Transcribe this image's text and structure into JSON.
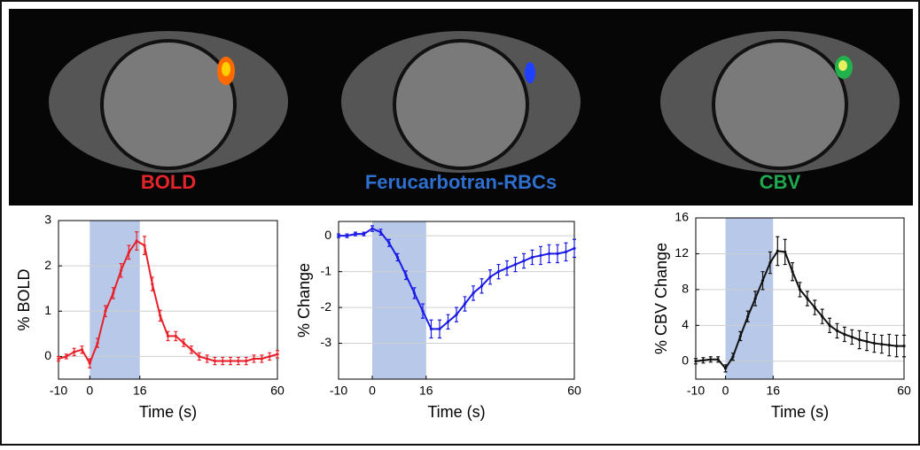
{
  "chart_data": [
    {
      "type": "line",
      "title": "BOLD",
      "title_color": "#e3242b",
      "xlabel": "Time (s)",
      "ylabel": "% BOLD",
      "x": [
        -10,
        -7.5,
        -5,
        -2.5,
        0,
        2.5,
        5,
        7.5,
        10,
        12.5,
        15,
        17.5,
        20,
        22.5,
        25,
        27.5,
        30,
        32.5,
        35,
        37.5,
        40,
        42.5,
        45,
        47.5,
        50,
        52.5,
        55,
        57.5,
        60
      ],
      "series": [
        {
          "color": "#e8202a",
          "values": [
            -0.05,
            0,
            0.1,
            0.15,
            -0.15,
            0.3,
            1.0,
            1.4,
            1.9,
            2.3,
            2.55,
            2.45,
            1.6,
            0.9,
            0.45,
            0.45,
            0.3,
            0.15,
            0,
            -0.05,
            -0.1,
            -0.1,
            -0.1,
            -0.1,
            -0.1,
            -0.05,
            -0.05,
            0,
            0.05
          ],
          "errors": [
            0.05,
            0.05,
            0.08,
            0.08,
            0.1,
            0.1,
            0.12,
            0.12,
            0.15,
            0.15,
            0.2,
            0.2,
            0.15,
            0.12,
            0.1,
            0.1,
            0.08,
            0.08,
            0.08,
            0.08,
            0.08,
            0.08,
            0.08,
            0.08,
            0.08,
            0.08,
            0.08,
            0.08,
            0.08
          ]
        }
      ],
      "shaded": [
        0,
        16
      ],
      "xlim": [
        -10,
        60
      ],
      "xticks": [
        -10,
        0,
        16,
        60
      ],
      "ylim": [
        -0.5,
        3
      ],
      "yticks": [
        0,
        1,
        2,
        3
      ],
      "grid": true
    },
    {
      "type": "line",
      "title": "Ferucarbotran-RBCs",
      "title_color": "#2e6fcf",
      "xlabel": "Time (s)",
      "ylabel": "% Change",
      "x": [
        -10,
        -7.5,
        -5,
        -2.5,
        0,
        2.5,
        5,
        7.5,
        10,
        12.5,
        15,
        17.5,
        20,
        22.5,
        25,
        27.5,
        30,
        32.5,
        35,
        37.5,
        40,
        42.5,
        45,
        47.5,
        50,
        52.5,
        55,
        57.5,
        60
      ],
      "series": [
        {
          "color": "#1a1ae6",
          "values": [
            0,
            0,
            0.05,
            0.05,
            0.2,
            0.1,
            -0.2,
            -0.6,
            -1.1,
            -1.6,
            -2.1,
            -2.6,
            -2.6,
            -2.4,
            -2.2,
            -1.9,
            -1.6,
            -1.4,
            -1.15,
            -1.0,
            -0.9,
            -0.8,
            -0.7,
            -0.6,
            -0.55,
            -0.5,
            -0.5,
            -0.45,
            -0.35
          ],
          "errors": [
            0.05,
            0.05,
            0.05,
            0.05,
            0.08,
            0.08,
            0.1,
            0.1,
            0.12,
            0.15,
            0.2,
            0.25,
            0.25,
            0.2,
            0.2,
            0.2,
            0.2,
            0.2,
            0.2,
            0.2,
            0.2,
            0.2,
            0.2,
            0.2,
            0.25,
            0.25,
            0.25,
            0.25,
            0.25
          ]
        }
      ],
      "shaded": [
        0,
        16
      ],
      "xlim": [
        -10,
        60
      ],
      "xticks": [
        -10,
        0,
        16,
        60
      ],
      "ylim": [
        -4,
        0.4
      ],
      "yticks": [
        0,
        -1,
        -2,
        -3
      ],
      "grid": true
    },
    {
      "type": "line",
      "title": "CBV",
      "title_color": "#1fa84f",
      "xlabel": "Time (s)",
      "ylabel": "% CBV Change",
      "x": [
        -10,
        -7.5,
        -5,
        -2.5,
        0,
        2.5,
        5,
        7.5,
        10,
        12.5,
        15,
        17.5,
        20,
        22.5,
        25,
        27.5,
        30,
        32.5,
        35,
        37.5,
        40,
        42.5,
        45,
        47.5,
        50,
        52.5,
        55,
        57.5,
        60
      ],
      "series": [
        {
          "color": "#111111",
          "values": [
            0,
            0.1,
            0.2,
            0.2,
            -0.8,
            0.5,
            2.8,
            5,
            7,
            9,
            11,
            12.3,
            12.2,
            10,
            8,
            7,
            6,
            5,
            4,
            3.4,
            3,
            2.7,
            2.4,
            2.2,
            2,
            1.9,
            1.8,
            1.7,
            1.7
          ],
          "errors": [
            0.3,
            0.3,
            0.3,
            0.3,
            0.4,
            0.4,
            0.5,
            0.6,
            0.8,
            1.0,
            1.2,
            1.6,
            1.4,
            1.0,
            0.8,
            0.8,
            0.8,
            0.8,
            0.8,
            0.8,
            0.8,
            0.8,
            1.0,
            1.0,
            1.0,
            1.0,
            1.2,
            1.2,
            1.2
          ]
        }
      ],
      "shaded": [
        0,
        16
      ],
      "xlim": [
        -10,
        60
      ],
      "xticks": [
        -10,
        0,
        16,
        60
      ],
      "ylim": [
        -2,
        16
      ],
      "yticks": [
        0,
        4,
        8,
        12,
        16
      ],
      "grid": true
    }
  ]
}
